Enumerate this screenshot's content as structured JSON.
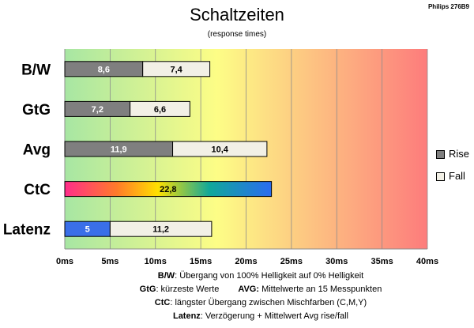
{
  "corner_label": "Philips 276B9",
  "colors": {
    "rise": "#7f7f7f",
    "fall": "#f2f0e6",
    "latency_rise": "#3a6fe8",
    "bg_start": "#a7e6a3",
    "bg_mid": "#fdfd86",
    "bg_end": "#fd7c7c"
  },
  "chart_data": {
    "type": "bar",
    "orientation": "horizontal",
    "stacked": true,
    "title": "Schaltzeiten",
    "subtitle": "(response times)",
    "categories": [
      "B/W",
      "GtG",
      "Avg",
      "CtC",
      "Latenz"
    ],
    "series": [
      {
        "name": "Rise",
        "values": [
          8.6,
          7.2,
          11.9,
          null,
          5
        ],
        "labels": [
          "8,6",
          "7,2",
          "11,9",
          "",
          "5"
        ]
      },
      {
        "name": "Fall",
        "values": [
          7.4,
          6.6,
          10.4,
          null,
          11.2
        ],
        "labels": [
          "7,4",
          "6,6",
          "10,4",
          "",
          "11,2"
        ]
      },
      {
        "name": "",
        "values": [
          null,
          null,
          null,
          22.8,
          null
        ],
        "labels": [
          "",
          "",
          "",
          "22,8",
          ""
        ]
      }
    ],
    "xlim": [
      0,
      40
    ],
    "x_ticks": [
      "0ms",
      "5ms",
      "10ms",
      "15ms",
      "20ms",
      "25ms",
      "30ms",
      "35ms",
      "40ms"
    ],
    "grid": true,
    "legend": {
      "position": "right",
      "entries": [
        "Rise",
        "Fall"
      ]
    }
  },
  "notes": {
    "line1_key": "B/W",
    "line1_text": ":  Übergang von 100% Helligkeit auf 0% Helligkeit",
    "line2a_key": "GtG",
    "line2a_text": ": kürzeste  Werte",
    "line2b_key": "AVG:",
    "line2b_text": " Mittelwerte  an 15 Messpunkten",
    "line3_key": "CtC",
    "line3_text": ": längster Übergang  zwischen Mischfarben (C,M,Y)",
    "line4_key": "Latenz",
    "line4_text": ": Verzögerung  + Mittelwert  Avg rise/fall"
  }
}
